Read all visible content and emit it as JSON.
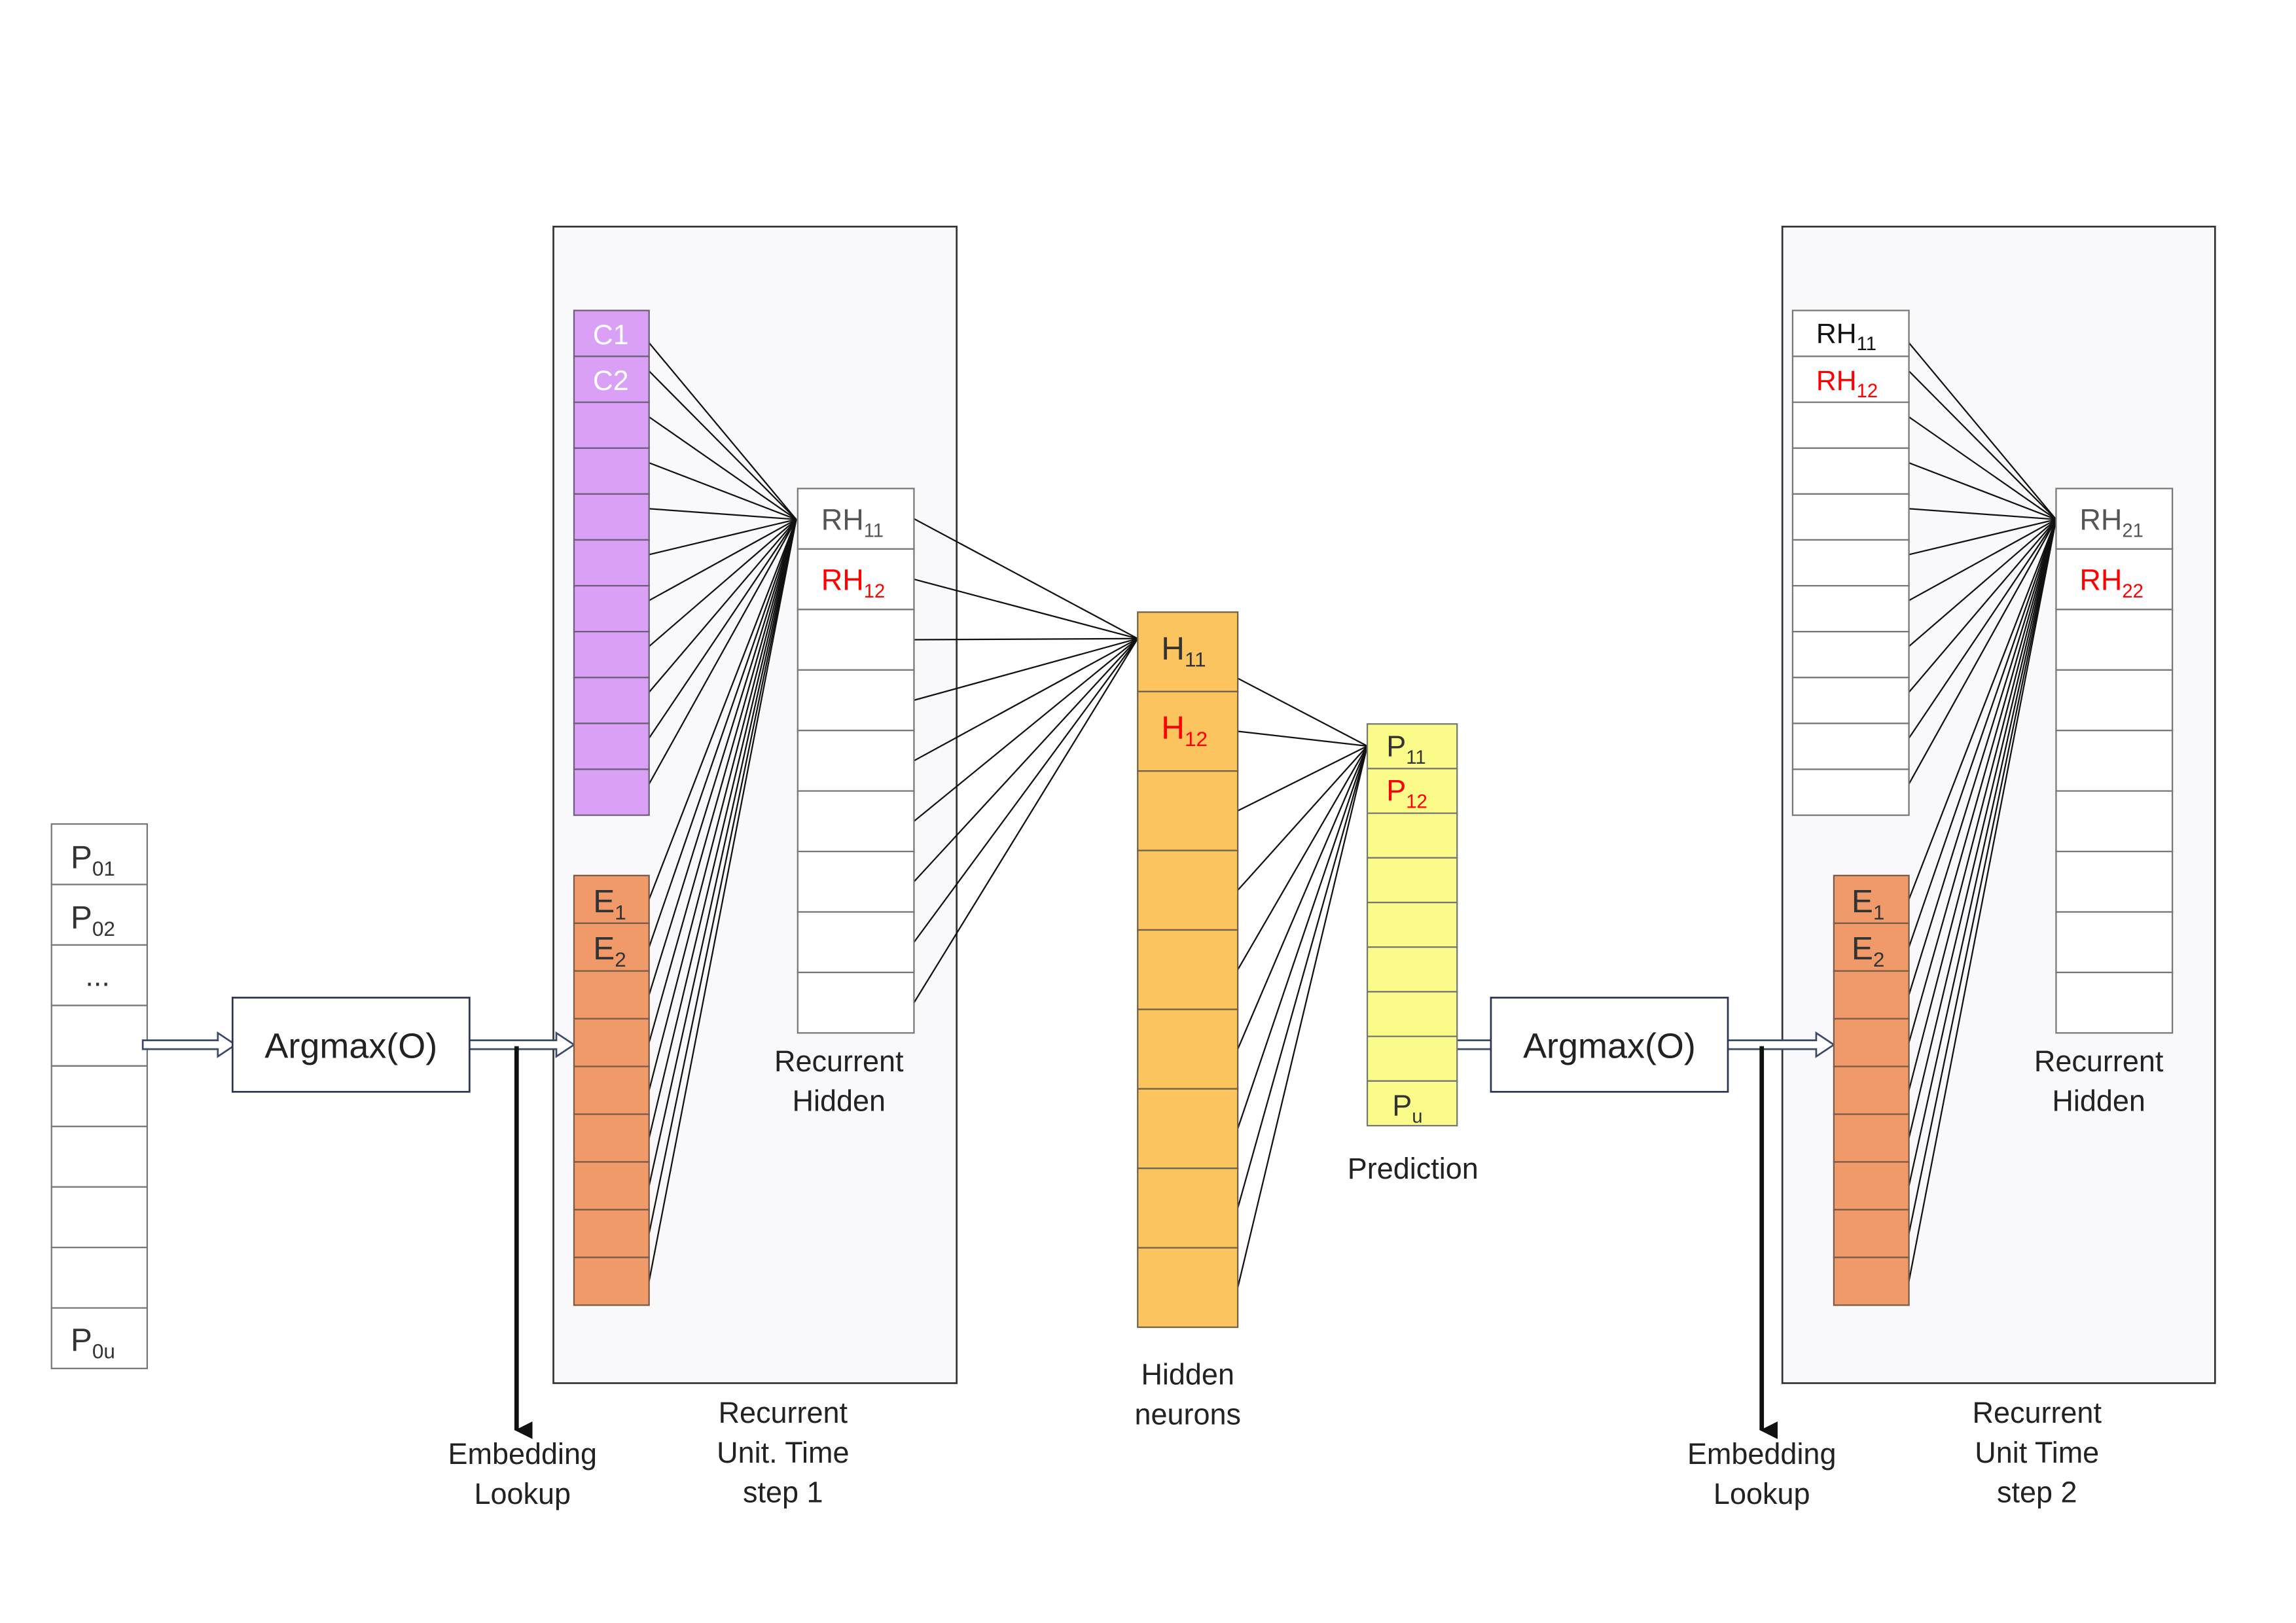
{
  "colors": {
    "background": "#ffffff",
    "panel_fill": "#f9f9fb",
    "outline": "#555555",
    "context_fill": "#d9a0f5",
    "embedding_fill": "#f09a6a",
    "hidden_fill": "#fcc45e",
    "prediction_fill": "#fbfb8a",
    "highlight_text": "#ff0000",
    "line": "#111111"
  },
  "input_sequence": {
    "labels": [
      "P",
      "P",
      "...",
      "P"
    ],
    "subscripts": [
      "01",
      "02",
      "",
      "0u"
    ]
  },
  "argmax_1": {
    "label": "Argmax(O)"
  },
  "argmax_2": {
    "label": "Argmax(O)"
  },
  "embedding_lookup_1": {
    "line1": "Embedding",
    "line2": "Lookup"
  },
  "embedding_lookup_2": {
    "line1": "Embedding",
    "line2": "Lookup"
  },
  "time_step_1": {
    "context_cells": [
      "C1",
      "C2"
    ],
    "embedding_cells": {
      "labels": [
        "E",
        "E"
      ],
      "subscripts": [
        "1",
        "2"
      ]
    },
    "recurrent_cells": {
      "labels": [
        "RH",
        "RH"
      ],
      "subscripts": [
        "11",
        "12"
      ]
    },
    "recurrent_label": {
      "line1": "Recurrent",
      "line2": "Hidden"
    },
    "panel_label": {
      "line1": "Recurrent",
      "line2": "Unit. Time",
      "line3": "step 1"
    }
  },
  "hidden_layer": {
    "cells": {
      "labels": [
        "H",
        "H"
      ],
      "subscripts": [
        "11",
        "12"
      ]
    },
    "label": {
      "line1": "Hidden",
      "line2": "neurons"
    }
  },
  "prediction_layer": {
    "cells": {
      "labels": [
        "P",
        "P",
        "P"
      ],
      "subscripts": [
        "11",
        "12",
        "u"
      ]
    },
    "label": "Prediction"
  },
  "time_step_2": {
    "prev_hidden_cells": {
      "labels": [
        "RH",
        "RH"
      ],
      "subscripts": [
        "11",
        "12"
      ]
    },
    "embedding_cells": {
      "labels": [
        "E",
        "E"
      ],
      "subscripts": [
        "1",
        "2"
      ]
    },
    "recurrent_cells": {
      "labels": [
        "RH",
        "RH"
      ],
      "subscripts": [
        "21",
        "22"
      ]
    },
    "recurrent_label": {
      "line1": "Recurrent",
      "line2": "Hidden"
    },
    "panel_label": {
      "line1": "Recurrent",
      "line2": "Unit Time",
      "line3": "step 2"
    }
  }
}
